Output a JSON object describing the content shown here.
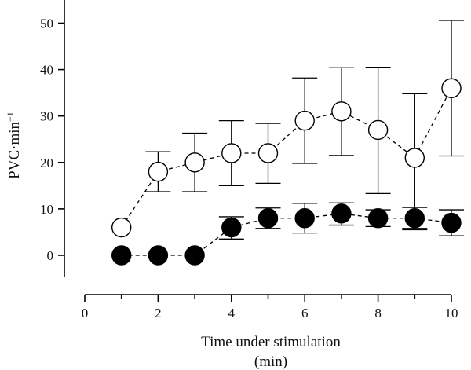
{
  "chart_data": {
    "type": "scatter",
    "title": "",
    "xlabel": "Time under stimulation",
    "xlabel_line2": "(min)",
    "ylabel": "PVC·min",
    "ylabel_superscript": "−1",
    "xlim": [
      0,
      10.5
    ],
    "ylim": [
      -3,
      55
    ],
    "xticks": [
      0,
      2,
      4,
      6,
      8,
      10
    ],
    "yticks": [
      0,
      10,
      20,
      30,
      40,
      50
    ],
    "grid": false,
    "legend": "none",
    "series": [
      {
        "marker": "open-circle",
        "color": "#000000",
        "fill": "#ffffff",
        "x": [
          1,
          2,
          3,
          4,
          5,
          6,
          7,
          8,
          9,
          10
        ],
        "y": [
          6,
          18,
          20,
          22,
          22,
          29,
          31,
          27,
          21,
          36
        ],
        "err_low": [
          null,
          13.7,
          13.7,
          15,
          15.5,
          19.8,
          21.5,
          13.3,
          5.8,
          21.4
        ],
        "err_high": [
          null,
          22.3,
          26.3,
          29,
          28.4,
          38.2,
          40.4,
          40.5,
          34.8,
          50.6
        ]
      },
      {
        "marker": "filled-circle",
        "color": "#000000",
        "fill": "#000000",
        "x": [
          1,
          2,
          3,
          4,
          5,
          6,
          7,
          8,
          9,
          10
        ],
        "y": [
          0,
          0,
          0,
          6,
          8,
          8,
          9,
          8,
          8,
          7
        ],
        "err_low": [
          null,
          null,
          null,
          3.5,
          5.8,
          4.8,
          6.5,
          6.2,
          5.5,
          4.2
        ],
        "err_high": [
          null,
          null,
          null,
          8.3,
          10.2,
          11.2,
          11.3,
          9.8,
          10.3,
          9.8
        ]
      }
    ]
  }
}
